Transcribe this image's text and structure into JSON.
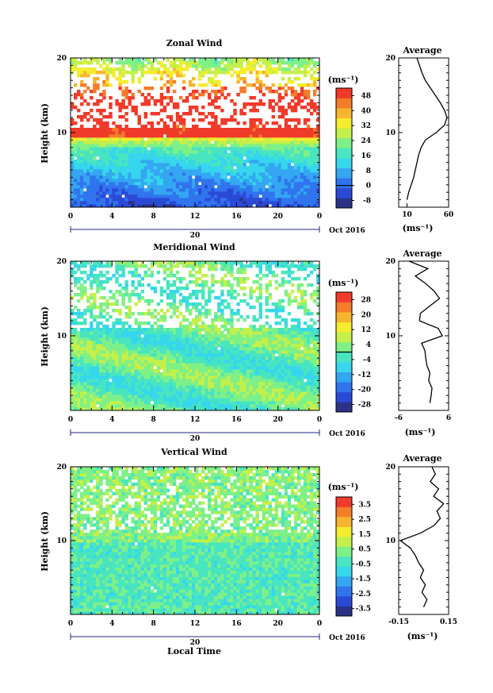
{
  "chart_data": [
    {
      "type": "heatmap",
      "title": "Zonal Wind",
      "ylabel": "Height (km)",
      "y_ticks": [
        10,
        20
      ],
      "x_ticks": [
        "0",
        "4",
        "8",
        "12",
        "16",
        "20",
        "0"
      ],
      "date_tick": "20",
      "date_label": "Oct 2016",
      "xlim": [
        0,
        24
      ],
      "ylim": [
        0,
        20
      ],
      "colorbar": {
        "unit": "(ms⁻¹)",
        "labels": [
          "48",
          "40",
          "32",
          "24",
          "16",
          "8",
          "0",
          "-8"
        ],
        "range": [
          -12,
          52
        ],
        "contour_value": 0
      },
      "profile": {
        "title": "Average",
        "xlabel": "(ms⁻¹)",
        "x_ticks": [
          "10",
          "60"
        ],
        "xlim": [
          0,
          60
        ],
        "y_ticks": [
          10,
          20
        ],
        "heights": [
          1,
          2,
          3,
          4,
          5,
          6,
          7,
          8,
          9,
          10,
          11,
          12,
          13,
          14,
          15,
          16,
          17,
          18,
          19,
          20
        ],
        "values": [
          10,
          12,
          15,
          18,
          20,
          22,
          24,
          27,
          32,
          45,
          55,
          58,
          55,
          50,
          44,
          38,
          32,
          28,
          25,
          22
        ]
      }
    },
    {
      "type": "heatmap",
      "title": "Meridional Wind",
      "ylabel": "Height (km)",
      "y_ticks": [
        10,
        20
      ],
      "x_ticks": [
        "0",
        "4",
        "8",
        "12",
        "16",
        "20",
        "0"
      ],
      "date_tick": "20",
      "date_label": "Oct 2016",
      "xlim": [
        0,
        24
      ],
      "ylim": [
        0,
        20
      ],
      "colorbar": {
        "unit": "(ms⁻¹)",
        "labels": [
          "28",
          "20",
          "12",
          "4",
          "-4",
          "-12",
          "-20",
          "-28"
        ],
        "range": [
          -32,
          32
        ],
        "contour_value": 0
      },
      "profile": {
        "title": "Average",
        "xlabel": "(ms⁻¹)",
        "x_ticks": [
          "-6",
          "6"
        ],
        "xlim": [
          -6,
          6
        ],
        "y_ticks": [
          10,
          20
        ],
        "heights": [
          1,
          2,
          3,
          4,
          5,
          6,
          7,
          8,
          9,
          10,
          11,
          12,
          13,
          14,
          15,
          16,
          17,
          18,
          19,
          20
        ],
        "values": [
          1.5,
          1.8,
          2.0,
          1.2,
          1.5,
          0.8,
          0.5,
          0.3,
          -0.5,
          4.5,
          3.5,
          -1.0,
          -0.8,
          1.5,
          3.8,
          2.5,
          0.5,
          -2.0,
          1.0,
          -3.5
        ]
      }
    },
    {
      "type": "heatmap",
      "title": "Vertical Wind",
      "ylabel": "Height (km)",
      "xlabel": "Local Time",
      "y_ticks": [
        10,
        20
      ],
      "x_ticks": [
        "0",
        "4",
        "8",
        "12",
        "16",
        "20",
        "0"
      ],
      "date_tick": "20",
      "date_label": "Oct 2016",
      "xlim": [
        0,
        24
      ],
      "ylim": [
        0,
        20
      ],
      "colorbar": {
        "unit": "(ms⁻¹)",
        "labels": [
          "3.5",
          "2.5",
          "1.5",
          "0.5",
          "-0.5",
          "-1.5",
          "-2.5",
          "-3.5"
        ],
        "range": [
          -4,
          4
        ]
      },
      "profile": {
        "title": "Average",
        "xlabel": "(ms⁻¹)",
        "x_ticks": [
          "-0.15",
          "0.15"
        ],
        "xlim": [
          -0.15,
          0.15
        ],
        "y_ticks": [
          10,
          20
        ],
        "heights": [
          1,
          2,
          3,
          4,
          5,
          6,
          7,
          8,
          9,
          10,
          11,
          12,
          13,
          14,
          15,
          16,
          17,
          18,
          19,
          20
        ],
        "values": [
          0.0,
          0.02,
          -0.01,
          0.01,
          -0.02,
          0.0,
          -0.03,
          -0.05,
          -0.08,
          -0.14,
          -0.02,
          0.06,
          0.1,
          0.08,
          0.12,
          0.06,
          0.09,
          0.04,
          0.07,
          0.05
        ]
      }
    }
  ],
  "colors": {
    "scale": [
      "#2b3286",
      "#2a4ad6",
      "#3074ee",
      "#34a6f2",
      "#36d6ec",
      "#48e5c0",
      "#7ef088",
      "#c3f04a",
      "#f4ed2e",
      "#f6b52e",
      "#f47d2a",
      "#f03a2a"
    ]
  }
}
